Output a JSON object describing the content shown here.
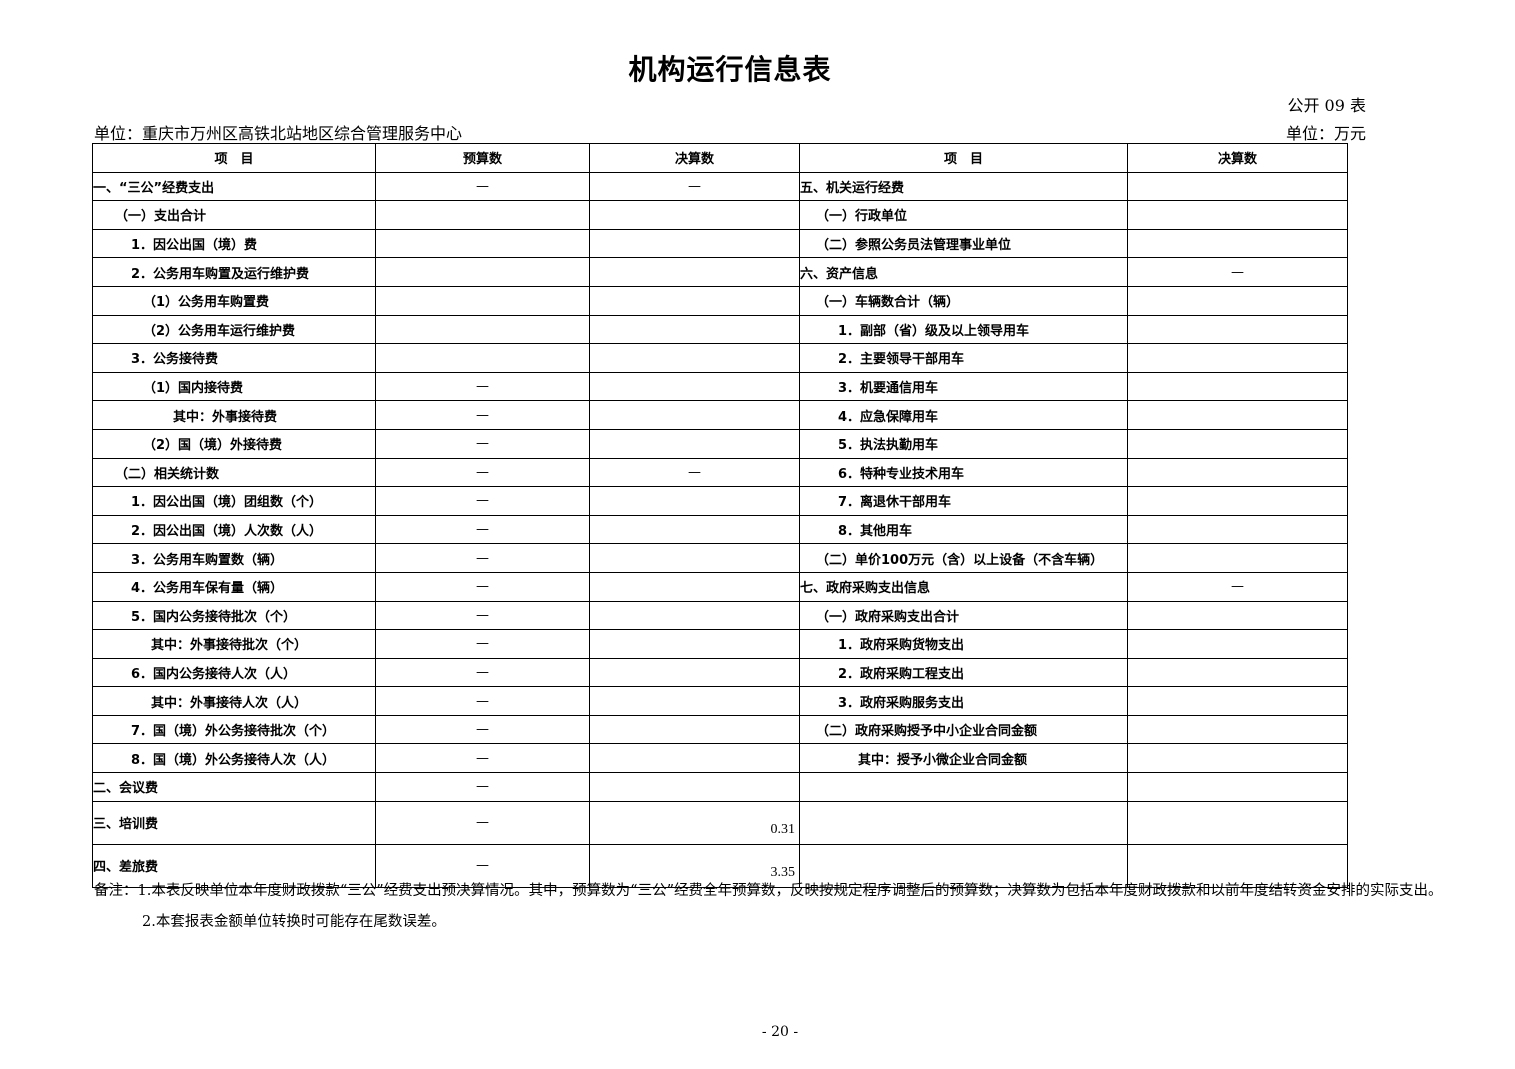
{
  "title": "机构运行信息表",
  "table_no": "公开 09 表",
  "org": "单位：重庆市万州区高铁北站地区综合管理服务中心",
  "unit": "单位：万元",
  "headers": {
    "item": "项　目",
    "budget": "预算数",
    "final": "决算数",
    "item2": "项　目",
    "final2": "决算数"
  },
  "rows": [
    {
      "l": "一、“三公”经费支出",
      "b": "—",
      "f": "—",
      "r": "五、机关运行经费",
      "rv": ""
    },
    {
      "l": "（一）支出合计",
      "b": "",
      "f": "",
      "r": "（一）行政单位",
      "rv": ""
    },
    {
      "l": "1．因公出国（境）费",
      "b": "",
      "f": "",
      "r": "（二）参照公务员法管理事业单位",
      "rv": ""
    },
    {
      "l": "2．公务用车购置及运行维护费",
      "b": "",
      "f": "",
      "r": "六、资产信息",
      "rv": "—"
    },
    {
      "l": "（1）公务用车购置费",
      "b": "",
      "f": "",
      "r": "（一）车辆数合计（辆）",
      "rv": ""
    },
    {
      "l": "（2）公务用车运行维护费",
      "b": "",
      "f": "",
      "r": "1．副部（省）级及以上领导用车",
      "rv": ""
    },
    {
      "l": "3．公务接待费",
      "b": "",
      "f": "",
      "r": "2．主要领导干部用车",
      "rv": ""
    },
    {
      "l": "（1）国内接待费",
      "b": "—",
      "f": "",
      "r": "3．机要通信用车",
      "rv": ""
    },
    {
      "l": "其中：外事接待费",
      "b": "—",
      "f": "",
      "r": "4．应急保障用车",
      "rv": ""
    },
    {
      "l": "（2）国（境）外接待费",
      "b": "—",
      "f": "",
      "r": "5．执法执勤用车",
      "rv": ""
    },
    {
      "l": "（二）相关统计数",
      "b": "—",
      "f": "—",
      "r": "6．特种专业技术用车",
      "rv": ""
    },
    {
      "l": "1．因公出国（境）团组数（个）",
      "b": "—",
      "f": "",
      "r": "7．离退休干部用车",
      "rv": ""
    },
    {
      "l": "2．因公出国（境）人次数（人）",
      "b": "—",
      "f": "",
      "r": "8．其他用车",
      "rv": ""
    },
    {
      "l": "3．公务用车购置数（辆）",
      "b": "—",
      "f": "",
      "r": "（二）单价100万元（含）以上设备（不含车辆）",
      "rv": ""
    },
    {
      "l": "4．公务用车保有量（辆）",
      "b": "—",
      "f": "",
      "r": "七、政府采购支出信息",
      "rv": "—"
    },
    {
      "l": "5．国内公务接待批次（个）",
      "b": "—",
      "f": "",
      "r": "（一）政府采购支出合计",
      "rv": ""
    },
    {
      "l": "其中：外事接待批次（个）",
      "b": "—",
      "f": "",
      "r": "1．政府采购货物支出",
      "rv": ""
    },
    {
      "l": "6．国内公务接待人次（人）",
      "b": "—",
      "f": "",
      "r": "2．政府采购工程支出",
      "rv": ""
    },
    {
      "l": "其中：外事接待人次（人）",
      "b": "—",
      "f": "",
      "r": "3．政府采购服务支出",
      "rv": ""
    },
    {
      "l": "7．国（境）外公务接待批次（个）",
      "b": "—",
      "f": "",
      "r": "（二）政府采购授予中小企业合同金额",
      "rv": ""
    },
    {
      "l": "8．国（境）外公务接待人次（人）",
      "b": "—",
      "f": "",
      "r": "其中：授予小微企业合同金额",
      "rv": ""
    },
    {
      "l": "二、会议费",
      "b": "—",
      "f": "",
      "r": "",
      "rv": ""
    },
    {
      "l": "三、培训费",
      "b": "—",
      "f": "0.31",
      "r": "",
      "rv": ""
    },
    {
      "l": "四、差旅费",
      "b": "—",
      "f": "3.35",
      "r": "",
      "rv": ""
    }
  ],
  "notes": [
    "备注：1.本表反映单位本年度财政拨款“三公”经费支出预决算情况。其中，预算数为“三公”经费全年预算数，反映按规定程序调整后的预算数；决算数为包括本年度财政拨款和以前年度结转资金安排的实际支出。",
    "2.本套报表金额单位转换时可能存在尾数误差。"
  ],
  "page_number": "- 20 -"
}
